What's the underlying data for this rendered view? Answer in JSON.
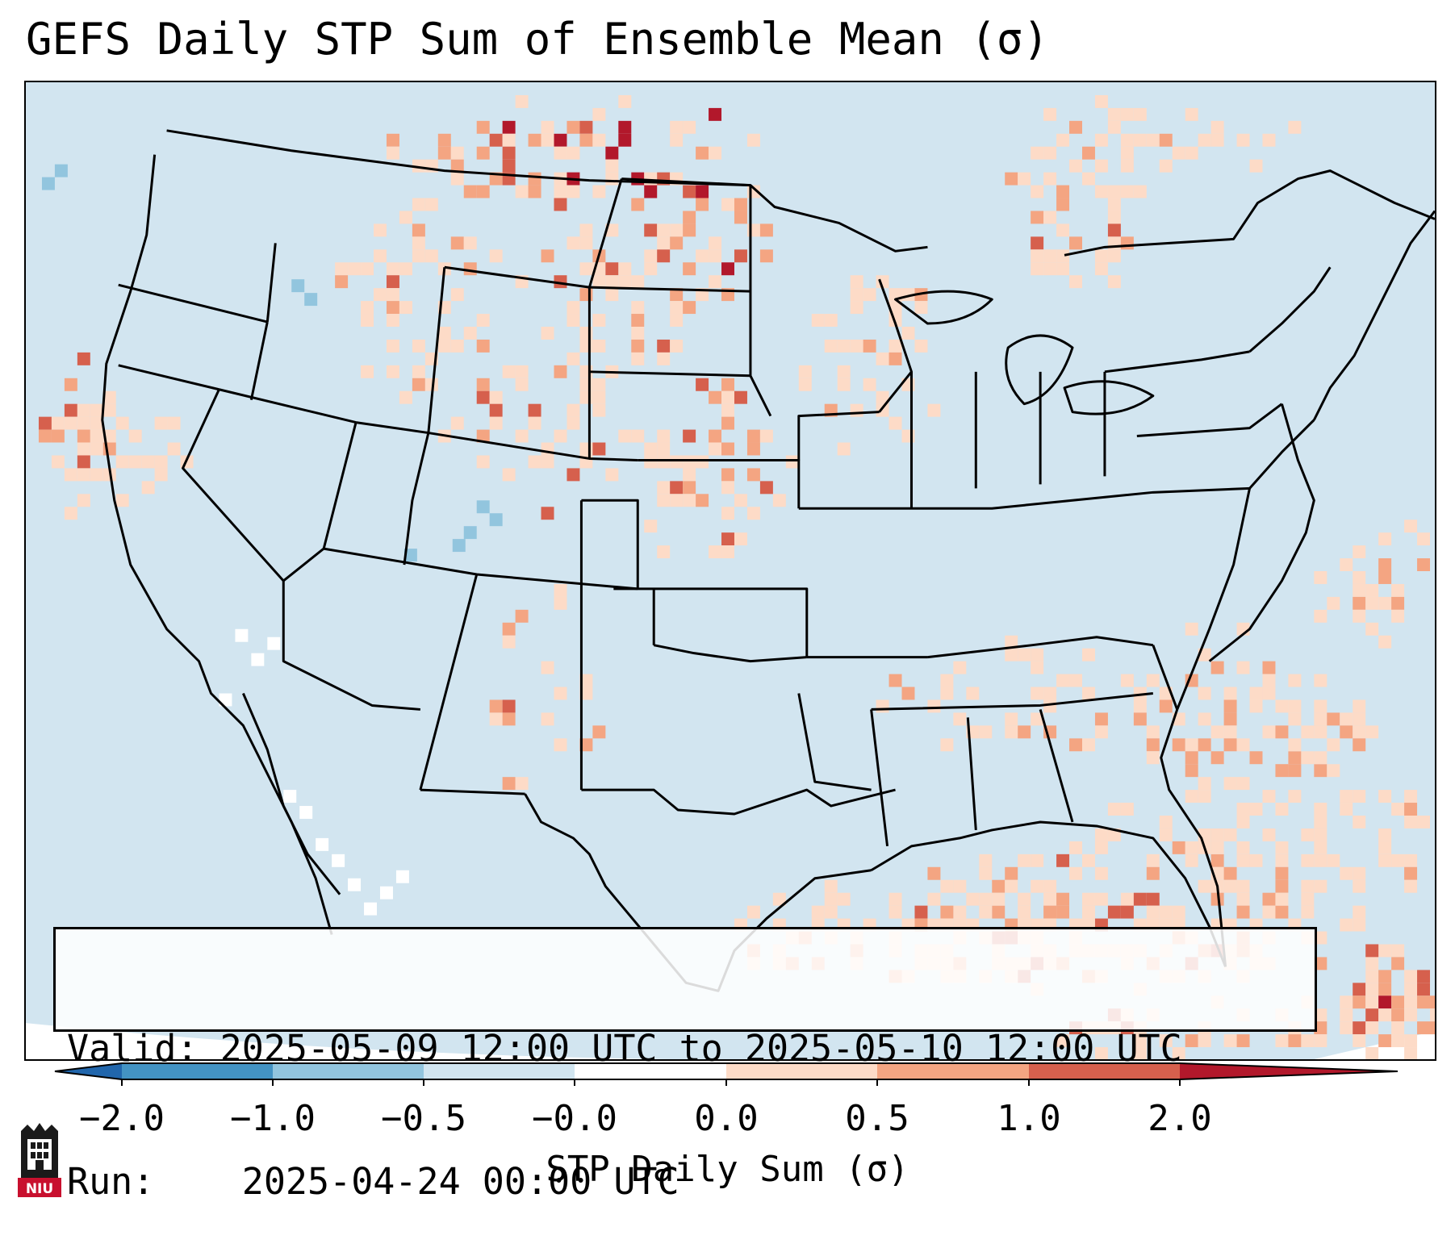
{
  "title": "GEFS Daily STP Sum of Ensemble Mean (σ)",
  "info": {
    "valid_label": "Valid:",
    "valid_value": "2025-05-09 12:00 UTC to 2025-05-10 12:00 UTC",
    "run_label": "Run:",
    "run_value": "2025-04-24 00:00 UTC"
  },
  "colorbar": {
    "label": "STP Daily Sum (σ)",
    "ticks": [
      "−2.0",
      "−1.0",
      "−0.5",
      "−0.0",
      "0.0",
      "0.5",
      "1.0",
      "2.0"
    ],
    "bin_colors": [
      "#2166ac",
      "#4393c3",
      "#92c5de",
      "#d1e5f0",
      "#ffffff",
      "#fddbc7",
      "#f4a582",
      "#d6604d",
      "#b2182b"
    ],
    "extend": "both"
  },
  "legend_colors": {
    "ocean_background": "#d2e5f0",
    "state_borders": "#000000"
  },
  "logo": {
    "text": "NIU",
    "color": "#c8102e"
  }
}
